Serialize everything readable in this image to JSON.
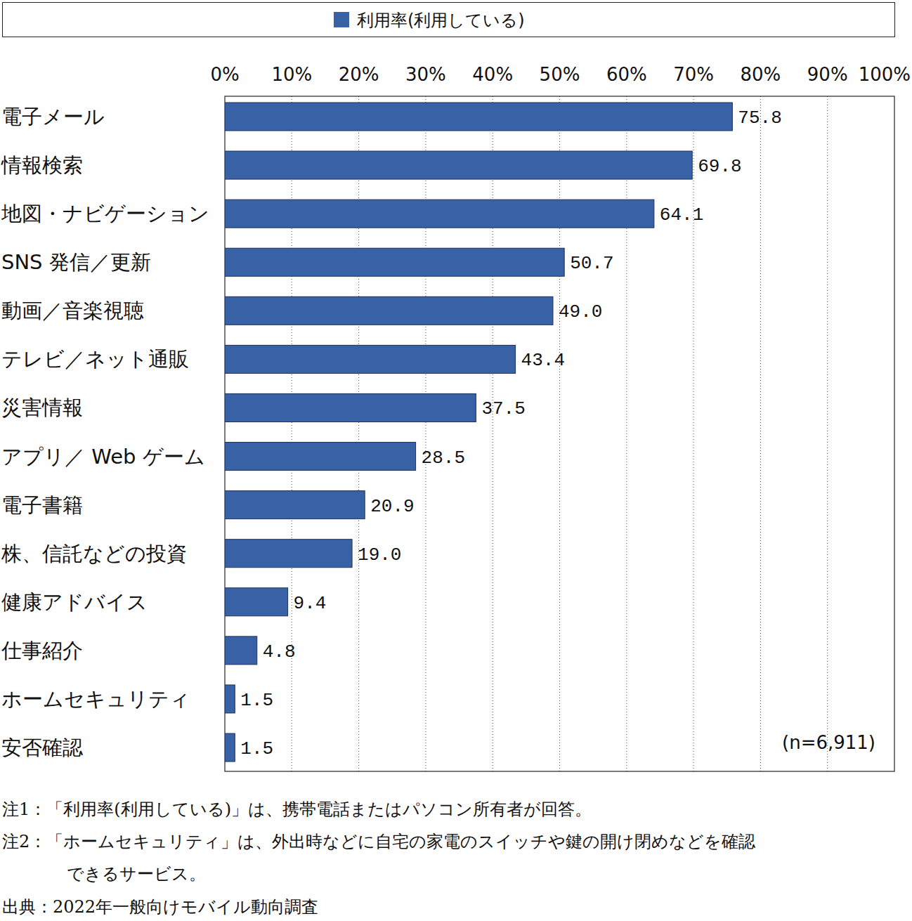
{
  "chart_data": {
    "type": "bar",
    "orientation": "horizontal",
    "categories": [
      "電子メール",
      "情報検索",
      "地図・ナビゲーション",
      "SNS 発信／更新",
      "動画／音楽視聴",
      "テレビ／ネット通販",
      "災害情報",
      "アプリ／ Web ゲーム",
      "電子書籍",
      "株、信託などの投資",
      "健康アドバイス",
      "仕事紹介",
      "ホームセキュリティ",
      "安否確認"
    ],
    "series": [
      {
        "name": "利用率(利用している)",
        "color": "#3862a5",
        "values": [
          75.8,
          69.8,
          64.1,
          50.7,
          49.0,
          43.4,
          37.5,
          28.5,
          20.9,
          19.0,
          9.4,
          4.8,
          1.5,
          1.5
        ],
        "value_labels": [
          "75.8",
          "69.8",
          "64.1",
          "50.7",
          "49.0",
          "43.4",
          "37.5",
          "28.5",
          "20.9",
          "19.0",
          "9.4",
          "4.8",
          "1.5",
          "1.5"
        ]
      }
    ],
    "xlim": [
      0,
      100
    ],
    "xticks": [
      {
        "value": 0,
        "label": "0%"
      },
      {
        "value": 10,
        "label": "10%"
      },
      {
        "value": 20,
        "label": "20%"
      },
      {
        "value": 30,
        "label": "30%"
      },
      {
        "value": 40,
        "label": "40%"
      },
      {
        "value": 50,
        "label": "50%"
      },
      {
        "value": 60,
        "label": "60%"
      },
      {
        "value": 70,
        "label": "70%"
      },
      {
        "value": 80,
        "label": "80%"
      },
      {
        "value": 90,
        "label": "90%"
      },
      {
        "value": 100,
        "label": "100%"
      }
    ],
    "grid": true,
    "legend": "top",
    "data_labels": true,
    "annotations": [
      "(n=6,911)"
    ],
    "notes": [
      "注1：「利用率(利用している)」は、携帯電話またはパソコン所有者が回答。",
      "注2：「ホームセキュリティ」は、外出時などに自宅の家電のスイッチや鍵の開け閉めなどを確認",
      "できるサービス。"
    ],
    "source": "出典：2022年一般向けモバイル動向調査"
  }
}
